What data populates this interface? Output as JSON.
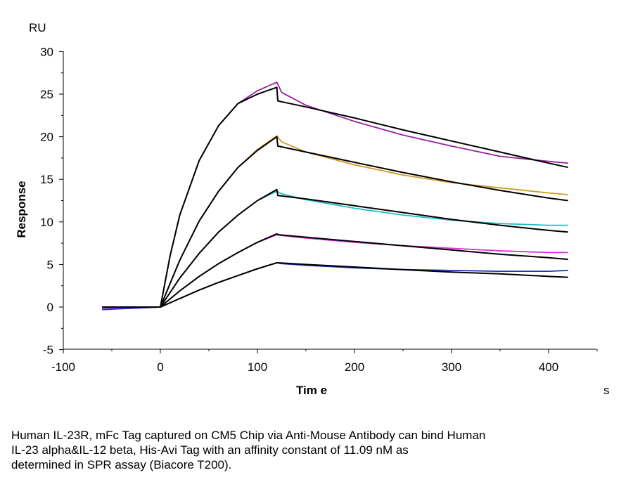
{
  "chart_data": {
    "type": "line",
    "title": "",
    "xlabel": "Tim e",
    "x_unit": "s",
    "ylabel": "Response",
    "y_unit": "RU",
    "xlim": [
      -100,
      450
    ],
    "ylim": [
      -5,
      30
    ],
    "x_ticks": [
      "-100",
      "0",
      "100",
      "200",
      "300",
      "400"
    ],
    "y_ticks": [
      "-5",
      "0",
      "5",
      "10",
      "15",
      "20",
      "25",
      "30"
    ],
    "grid": false,
    "legend": "none",
    "series": [
      {
        "color": "#9b1fa3",
        "x": [
          -60,
          -20,
          0,
          10,
          20,
          40,
          60,
          80,
          100,
          120,
          125,
          150,
          200,
          250,
          300,
          350,
          400,
          420
        ],
        "y": [
          -0.2,
          -0.1,
          0.0,
          6.0,
          10.8,
          17.2,
          21.3,
          23.9,
          25.4,
          26.4,
          25.2,
          23.7,
          21.8,
          20.2,
          18.9,
          17.7,
          17.1,
          16.9
        ]
      },
      {
        "color": "#000000",
        "x": [
          -60,
          0,
          10,
          20,
          40,
          60,
          80,
          100,
          120,
          121,
          150,
          200,
          250,
          300,
          350,
          400,
          420
        ],
        "y": [
          0.0,
          0.0,
          6.0,
          10.8,
          17.2,
          21.3,
          23.9,
          25.0,
          25.8,
          24.2,
          23.5,
          22.2,
          20.8,
          19.5,
          18.2,
          16.9,
          16.4
        ]
      },
      {
        "color": "#d19a2a",
        "x": [
          -60,
          0,
          20,
          40,
          60,
          80,
          100,
          120,
          125,
          150,
          200,
          250,
          300,
          350,
          400,
          420
        ],
        "y": [
          -0.2,
          0.0,
          5.5,
          10.1,
          13.6,
          16.4,
          18.5,
          20.1,
          19.4,
          18.2,
          16.7,
          15.5,
          14.6,
          14.0,
          13.4,
          13.2
        ]
      },
      {
        "color": "#000000",
        "x": [
          -60,
          0,
          20,
          40,
          60,
          80,
          100,
          120,
          121,
          150,
          200,
          250,
          300,
          350,
          400,
          420
        ],
        "y": [
          0.0,
          0.0,
          5.5,
          10.1,
          13.6,
          16.4,
          18.4,
          20.0,
          18.9,
          18.2,
          17.0,
          15.8,
          14.7,
          13.7,
          12.8,
          12.5
        ]
      },
      {
        "color": "#25bcc4",
        "x": [
          -60,
          0,
          20,
          40,
          60,
          80,
          100,
          120,
          125,
          150,
          200,
          250,
          300,
          350,
          400,
          420
        ],
        "y": [
          -0.2,
          0.0,
          3.4,
          6.3,
          8.8,
          10.8,
          12.5,
          13.6,
          13.3,
          12.6,
          11.6,
          10.8,
          10.2,
          9.8,
          9.6,
          9.6
        ]
      },
      {
        "color": "#000000",
        "x": [
          -60,
          0,
          20,
          40,
          60,
          80,
          100,
          120,
          121,
          150,
          200,
          250,
          300,
          350,
          400,
          420
        ],
        "y": [
          0.0,
          0.0,
          3.4,
          6.3,
          8.8,
          10.8,
          12.5,
          13.8,
          13.1,
          12.7,
          11.9,
          11.1,
          10.3,
          9.6,
          9.0,
          8.8
        ]
      },
      {
        "color": "#e02ae0",
        "x": [
          -60,
          0,
          20,
          40,
          60,
          80,
          100,
          120,
          125,
          150,
          200,
          250,
          300,
          350,
          400,
          420
        ],
        "y": [
          -0.2,
          0.0,
          1.9,
          3.6,
          5.1,
          6.4,
          7.6,
          8.5,
          8.4,
          8.1,
          7.6,
          7.2,
          6.9,
          6.6,
          6.4,
          6.4
        ]
      },
      {
        "color": "#000000",
        "x": [
          -60,
          0,
          20,
          40,
          60,
          80,
          100,
          120,
          121,
          150,
          200,
          250,
          300,
          350,
          400,
          420
        ],
        "y": [
          0.0,
          0.0,
          1.9,
          3.6,
          5.1,
          6.4,
          7.6,
          8.6,
          8.5,
          8.2,
          7.7,
          7.2,
          6.7,
          6.2,
          5.8,
          5.6
        ]
      },
      {
        "color": "#1a2fb0",
        "x": [
          -60,
          0,
          20,
          40,
          60,
          80,
          100,
          120,
          125,
          150,
          200,
          250,
          300,
          350,
          400,
          420
        ],
        "y": [
          -0.3,
          0.0,
          1.0,
          2.0,
          2.9,
          3.7,
          4.5,
          5.2,
          5.1,
          4.9,
          4.6,
          4.4,
          4.3,
          4.2,
          4.2,
          4.3
        ]
      },
      {
        "color": "#000000",
        "x": [
          -60,
          0,
          20,
          40,
          60,
          80,
          100,
          120,
          121,
          150,
          200,
          250,
          300,
          350,
          400,
          420
        ],
        "y": [
          0.0,
          0.0,
          1.0,
          2.0,
          2.9,
          3.7,
          4.5,
          5.2,
          5.2,
          5.0,
          4.7,
          4.4,
          4.1,
          3.9,
          3.6,
          3.5
        ]
      }
    ]
  },
  "caption": [
    "Human IL-23R, mFc Tag captured on CM5 Chip via Anti-Mouse Antibody can bind Human",
    "IL-23 alpha&IL-12 beta, His-Avi Tag with an affinity constant of 11.09 nM as",
    "determined in SPR assay (Biacore T200)."
  ]
}
